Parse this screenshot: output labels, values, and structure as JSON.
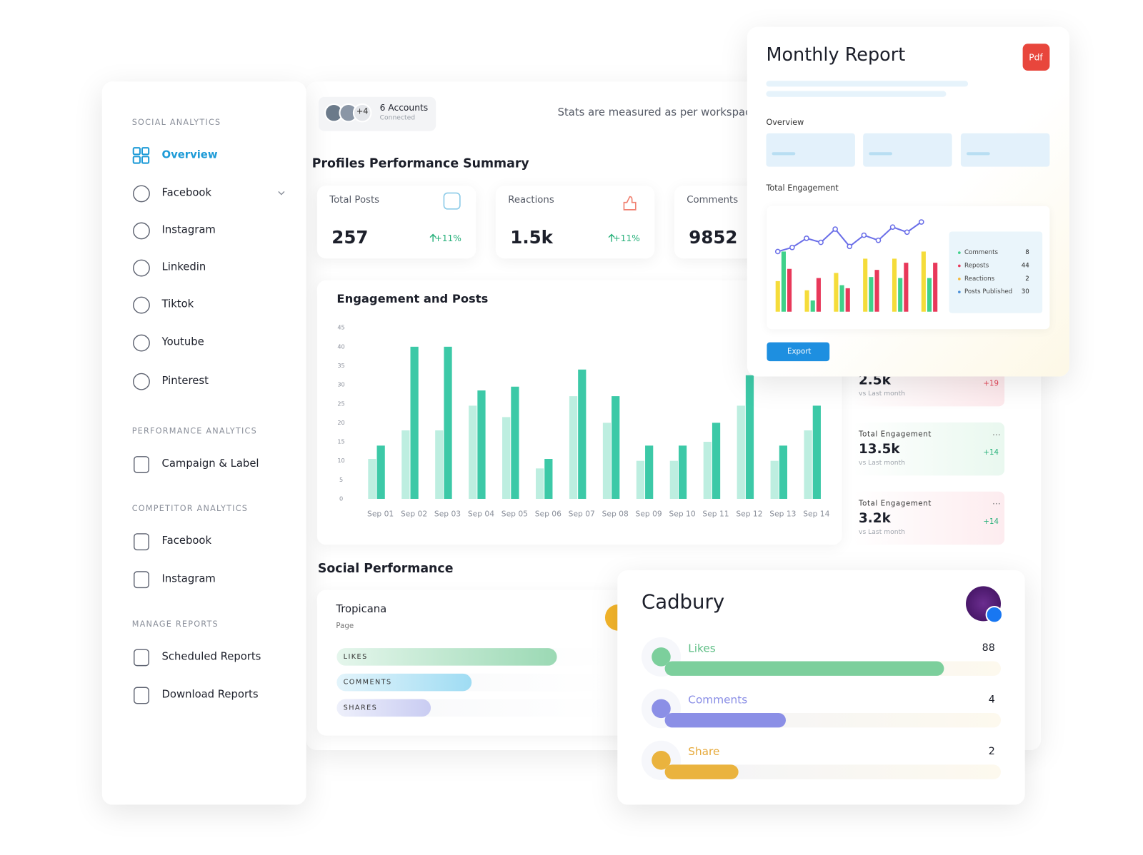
{
  "sidebar": {
    "sections": [
      {
        "title": "SOCIAL ANALYTICS",
        "items": [
          "Overview",
          "Facebook",
          "Instagram",
          "Linkedin",
          "Tiktok",
          "Youtube",
          "Pinterest"
        ]
      },
      {
        "title": "PERFORMANCE ANALYTICS",
        "items": [
          "Campaign & Label"
        ]
      },
      {
        "title": "COMPETITOR ANALYTICS",
        "items": [
          "Facebook",
          "Instagram"
        ]
      },
      {
        "title": "MANAGE REPORTS",
        "items": [
          "Scheduled Reports",
          "Download Reports"
        ]
      }
    ]
  },
  "header": {
    "accounts_extra": "+4",
    "accounts": "6 Accounts",
    "accounts_status": "Connected",
    "note": "Stats are measured as per workspac"
  },
  "summary": {
    "title": "Profiles Performance Summary",
    "cards": [
      {
        "label": "Total Posts",
        "value": "257",
        "change": "+11%"
      },
      {
        "label": "Reactions",
        "value": "1.5k",
        "change": "+11%"
      },
      {
        "label": "Comments",
        "value": "9852"
      }
    ]
  },
  "chart_data": {
    "type": "bar",
    "title": "Engagement and Posts",
    "categories": [
      "Sep 01",
      "Sep 02",
      "Sep 03",
      "Sep 04",
      "Sep 05",
      "Sep 06",
      "Sep 07",
      "Sep 08",
      "Sep 09",
      "Sep 10",
      "Sep 11",
      "Sep 12",
      "Sep 13",
      "Sep 14"
    ],
    "series": [
      {
        "color": "#bdeee0",
        "values": [
          10.5,
          18,
          18,
          24.5,
          21.5,
          8,
          27,
          20,
          10,
          10,
          15,
          24.5,
          10,
          18
        ]
      },
      {
        "color": "#3cc9a7",
        "values": [
          14,
          40,
          40,
          28.5,
          29.5,
          10.5,
          34,
          27,
          14,
          14,
          20,
          32.5,
          14,
          24.5
        ]
      }
    ],
    "ylim": [
      0,
      45
    ],
    "yticks": [
      0,
      5,
      10,
      15,
      20,
      25,
      30,
      35,
      40,
      45
    ]
  },
  "side_stats": [
    {
      "value": "2.5k",
      "change": "+19",
      "note": "vs Last month"
    },
    {
      "label": "Total Engagement",
      "value": "13.5k",
      "change": "+14",
      "note": "vs Last month"
    },
    {
      "label": "Total Engagement",
      "value": "3.2k",
      "change": "+14",
      "note": "vs Last month"
    }
  ],
  "social": {
    "title": "Social Performance",
    "page": {
      "name": "Tropicana",
      "kind": "Page",
      "bars": [
        {
          "label": "LIKES",
          "fill": 80
        },
        {
          "label": "COMMENTS",
          "fill": 49
        },
        {
          "label": "SHARES",
          "fill": 34
        }
      ]
    }
  },
  "monthly_report": {
    "title": "Monthly Report",
    "badge": "Pdf",
    "overview": "Overview",
    "engagement": "Total Engagement",
    "mini_chart": {
      "ylim": [
        0,
        100
      ],
      "line": {
        "color": "#6a6ee8",
        "values": [
          59,
          63,
          72,
          68,
          81,
          64,
          75,
          70,
          83,
          78,
          88
        ]
      },
      "series": [
        {
          "color": "#f5dc3a",
          "values": [
            30,
            21,
            38,
            52,
            52,
            59
          ]
        },
        {
          "color": "#3fd18a",
          "values": [
            59,
            11,
            26,
            34,
            33,
            33
          ]
        },
        {
          "color": "#e8385a",
          "values": [
            42,
            33,
            23,
            41,
            48,
            48
          ]
        }
      ]
    },
    "legend": [
      {
        "name": "Comments",
        "value": 8,
        "color": "#3fd18a"
      },
      {
        "name": "Reposts",
        "value": 44,
        "color": "#e8385a"
      },
      {
        "name": "Reactions",
        "value": 2,
        "color": "#f5b83a"
      },
      {
        "name": "Posts Published",
        "value": 30,
        "color": "#4a8fd8"
      }
    ],
    "export": "Export"
  },
  "cadbury": {
    "name": "Cadbury",
    "metrics": [
      {
        "name": "Likes",
        "value": 88,
        "fill": 83,
        "color": "#7ccf9c",
        "text_color": "#5fbf86"
      },
      {
        "name": "Comments",
        "value": 4,
        "fill": 36,
        "color": "#8b8fe6",
        "text_color": "#8b8fe6"
      },
      {
        "name": "Share",
        "value": 2,
        "fill": 22,
        "color": "#eab33e",
        "text_color": "#e6a93a"
      }
    ]
  }
}
